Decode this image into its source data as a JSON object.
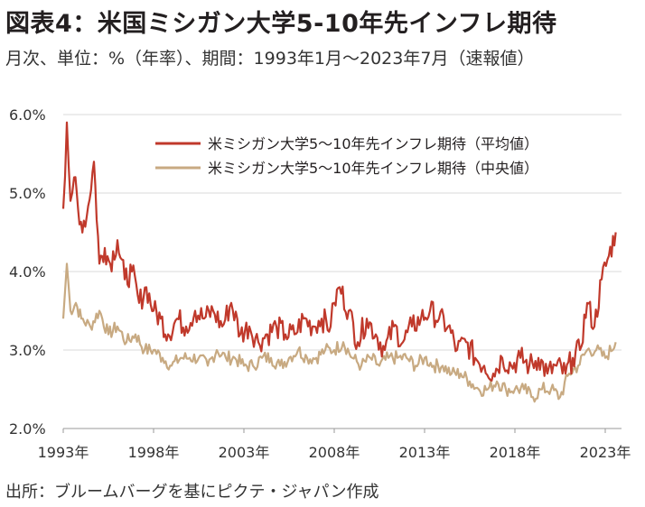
{
  "header": {
    "title": "図表4：米国ミシガン大学5-10年先インフレ期待",
    "subtitle": "月次、単位：%（年率）、期間：1993年1月～2023年7月（速報値）"
  },
  "footer": {
    "source": "出所：ブルームバーグを基にピクテ・ジャパン作成"
  },
  "chart_data": {
    "type": "line",
    "ylim": [
      2.0,
      6.0
    ],
    "yticks": [
      "6.0%",
      "5.0%",
      "4.0%",
      "3.0%",
      "2.0%"
    ],
    "ytick_values": [
      6.0,
      5.0,
      4.0,
      3.0,
      2.0
    ],
    "xticks": [
      "1993年",
      "1998年",
      "2003年",
      "2008年",
      "2013年",
      "2018年",
      "2023年"
    ],
    "xtick_values": [
      1993,
      1998,
      2003,
      2008,
      2013,
      2018,
      2023
    ],
    "grid": true,
    "legend_position": "top-right",
    "series": [
      {
        "name": "米ミシガン大学5～10年先インフレ期待（平均値）",
        "color": "#c0392b",
        "x": [
          1993.0,
          1993.2,
          1993.4,
          1993.6,
          1993.9,
          1994.3,
          1994.7,
          1995.0,
          1995.3,
          1995.6,
          1996.0,
          1996.4,
          1996.8,
          1997.2,
          1997.6,
          1998.0,
          1998.4,
          1998.8,
          1999.3,
          1999.8,
          2000.3,
          2000.8,
          2001.3,
          2001.8,
          2002.3,
          2002.8,
          2003.3,
          2003.8,
          2004.3,
          2004.8,
          2005.3,
          2005.8,
          2006.3,
          2006.8,
          2007.3,
          2007.8,
          2008.0,
          2008.3,
          2008.8,
          2009.3,
          2009.8,
          2010.3,
          2010.8,
          2011.3,
          2011.8,
          2012.3,
          2012.8,
          2013.3,
          2013.8,
          2014.3,
          2014.8,
          2015.3,
          2015.8,
          2016.3,
          2016.8,
          2017.3,
          2017.8,
          2018.3,
          2018.8,
          2019.3,
          2019.8,
          2020.3,
          2020.8,
          2021.2,
          2021.6,
          2022.0,
          2022.4,
          2022.8,
          2023.2,
          2023.58
        ],
        "values": [
          4.8,
          5.9,
          4.9,
          5.2,
          4.6,
          4.7,
          5.4,
          4.1,
          4.3,
          4.1,
          4.4,
          3.9,
          4.0,
          3.6,
          3.8,
          3.5,
          3.4,
          3.2,
          3.4,
          3.3,
          3.5,
          3.4,
          3.5,
          3.3,
          3.6,
          3.2,
          3.3,
          3.1,
          3.2,
          3.3,
          3.2,
          3.2,
          3.4,
          3.3,
          3.4,
          3.3,
          3.6,
          3.8,
          3.5,
          3.1,
          3.4,
          3.2,
          3.0,
          3.3,
          3.1,
          3.3,
          3.4,
          3.5,
          3.4,
          3.3,
          3.0,
          3.1,
          2.9,
          2.8,
          2.7,
          2.9,
          2.8,
          2.9,
          2.8,
          2.9,
          2.7,
          2.8,
          2.7,
          2.9,
          3.0,
          3.6,
          3.3,
          3.9,
          4.2,
          4.5
        ]
      },
      {
        "name": "米ミシガン大学5～10年先インフレ期待（中央値）",
        "color": "#c8aa82",
        "x": [
          1993.0,
          1993.2,
          1993.4,
          1993.7,
          1994.0,
          1994.5,
          1995.0,
          1995.5,
          1996.0,
          1996.5,
          1997.0,
          1997.5,
          1998.0,
          1998.5,
          1999.0,
          1999.5,
          2000.0,
          2000.5,
          2001.0,
          2001.5,
          2002.0,
          2002.5,
          2003.0,
          2003.5,
          2004.0,
          2004.5,
          2005.0,
          2005.5,
          2006.0,
          2006.5,
          2007.0,
          2007.5,
          2008.0,
          2008.5,
          2009.0,
          2009.5,
          2010.0,
          2010.5,
          2011.0,
          2011.5,
          2012.0,
          2012.5,
          2013.0,
          2013.5,
          2014.0,
          2014.5,
          2015.0,
          2015.5,
          2016.0,
          2016.5,
          2017.0,
          2017.5,
          2018.0,
          2018.5,
          2019.0,
          2019.5,
          2020.0,
          2020.5,
          2021.0,
          2021.5,
          2022.0,
          2022.5,
          2023.0,
          2023.58
        ],
        "values": [
          3.4,
          4.1,
          3.5,
          3.6,
          3.4,
          3.3,
          3.5,
          3.2,
          3.3,
          3.1,
          3.2,
          3.0,
          3.0,
          2.9,
          2.8,
          2.9,
          2.9,
          2.9,
          2.8,
          3.0,
          2.9,
          2.9,
          2.8,
          2.8,
          2.9,
          2.9,
          2.8,
          2.9,
          3.0,
          2.9,
          2.9,
          3.0,
          3.0,
          3.1,
          2.9,
          2.8,
          2.9,
          2.8,
          2.9,
          2.9,
          2.9,
          2.8,
          2.9,
          2.8,
          2.8,
          2.7,
          2.7,
          2.6,
          2.5,
          2.5,
          2.6,
          2.5,
          2.5,
          2.5,
          2.4,
          2.5,
          2.5,
          2.4,
          2.7,
          2.8,
          3.0,
          3.0,
          2.9,
          3.1
        ]
      }
    ]
  }
}
